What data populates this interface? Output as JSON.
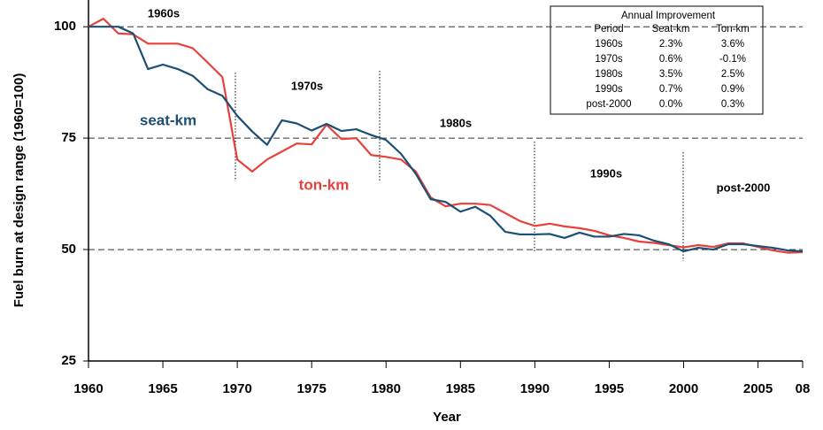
{
  "chart_data": {
    "type": "line",
    "x_label": "Year",
    "y_label": "Fuel burn at design range (1960=100)",
    "x": [
      1960,
      1961,
      1962,
      1963,
      1964,
      1965,
      1966,
      1967,
      1968,
      1969,
      1970,
      1971,
      1972,
      1973,
      1974,
      1975,
      1976,
      1977,
      1978,
      1979,
      1980,
      1981,
      1982,
      1983,
      1984,
      1985,
      1986,
      1987,
      1988,
      1989,
      1990,
      1991,
      1992,
      1993,
      1994,
      1995,
      1996,
      1997,
      1998,
      1999,
      2000,
      2001,
      2002,
      2003,
      2004,
      2005,
      2006,
      2007,
      2008
    ],
    "series": [
      {
        "name": "seat-km",
        "color": "#1c4f74",
        "values": [
          100,
          100,
          100,
          98.5,
          90.5,
          91.5,
          90.5,
          89,
          86,
          84.5,
          80,
          76.5,
          73.5,
          79,
          78.3,
          76.7,
          78.2,
          76.6,
          77,
          75.7,
          74.6,
          71.5,
          67,
          61.3,
          60.7,
          58.5,
          59.6,
          57.6,
          54,
          53.4,
          53.4,
          53.5,
          52.6,
          53.8,
          52.9,
          52.9,
          53.5,
          53.2,
          52,
          51.2,
          49.6,
          50.4,
          50,
          51.2,
          51.2,
          50.8,
          50.4,
          49.8,
          49.6
        ]
      },
      {
        "name": "ton-km",
        "color": "#e8403a",
        "values": [
          100,
          101.8,
          98.5,
          98.3,
          96.2,
          96.2,
          96.2,
          95.2,
          92,
          88.7,
          70.2,
          67.5,
          70.2,
          72,
          73.8,
          73.6,
          78,
          74.8,
          75,
          71.2,
          70.8,
          70.2,
          67.5,
          61.7,
          59.7,
          60.3,
          60.3,
          60,
          58.2,
          56.4,
          55.3,
          55.8,
          55.2,
          54.8,
          54.2,
          53.2,
          52.6,
          51.8,
          51.5,
          51,
          50.5,
          51,
          50.6,
          51.4,
          51.4,
          50.6,
          49.8,
          49.3,
          49.4
        ]
      }
    ],
    "xlim": [
      1960,
      2008
    ],
    "xticks": [
      1960,
      1965,
      1970,
      1975,
      1980,
      1985,
      1990,
      1995,
      2000,
      2005,
      {
        "value": 2008,
        "label": "08"
      }
    ],
    "ylim": [
      25,
      105
    ],
    "yticks": [
      25,
      50,
      75,
      100
    ],
    "grid": true,
    "annotations": [
      "1960s",
      "1970s",
      "1980s",
      "1990s",
      "post-2000"
    ],
    "table": {
      "title": "Annual Improvement",
      "columns": [
        "Period",
        "Seat-km",
        "Ton-km"
      ],
      "rows": [
        [
          "1960s",
          "2.3%",
          "3.6%"
        ],
        [
          "1970s",
          "0.6%",
          "-0.1%"
        ],
        [
          "1980s",
          "3.5%",
          "2.5%"
        ],
        [
          "1990s",
          "0.7%",
          "0.9%"
        ],
        [
          "post-2000",
          "0.0%",
          "0.3%"
        ]
      ]
    }
  }
}
